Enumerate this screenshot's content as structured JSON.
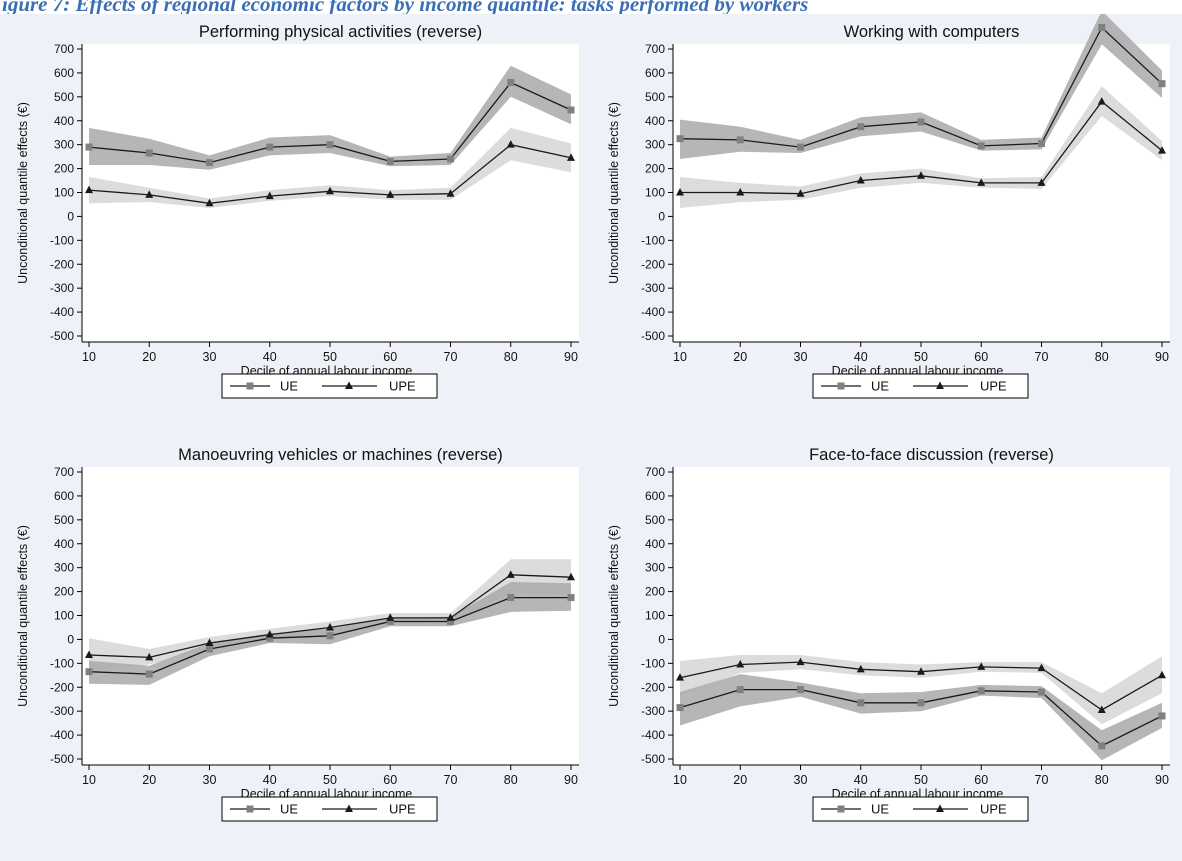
{
  "header": {
    "caption": "igure 7: Effects of regional economic factors by income quantile: tasks performed by workers"
  },
  "theme": {
    "plot_bg": "#ffffff",
    "outer_bg": "#eef2f8",
    "ue_band": "#a9a9a9",
    "upe_band": "#dcdcdc",
    "line_color": "#1a1a1a",
    "marker_color": "#808080"
  },
  "chart_data": [
    {
      "type": "line",
      "title": "Performing physical activities (reverse)",
      "xlabel": "Decile of annual labour income",
      "ylabel": "Unconditional quantile effects (€)",
      "x": [
        10,
        20,
        30,
        40,
        50,
        60,
        70,
        80,
        90
      ],
      "xticks": [
        "10",
        "20",
        "30",
        "40",
        "50",
        "60",
        "70",
        "80",
        "90"
      ],
      "ylim": [
        -500,
        700
      ],
      "yticks": [
        "700",
        "600",
        "500",
        "400",
        "300",
        "200",
        "100",
        "0",
        "-100",
        "-200",
        "-300",
        "-400",
        "-500"
      ],
      "legend": [
        "UE",
        "UPE"
      ],
      "legend_position": "bottom",
      "series": [
        {
          "name": "UE",
          "marker": "square",
          "values": [
            290,
            265,
            225,
            290,
            300,
            230,
            240,
            560,
            445
          ],
          "lower": [
            215,
            215,
            195,
            255,
            265,
            210,
            215,
            500,
            385
          ],
          "upper": [
            370,
            325,
            255,
            330,
            340,
            250,
            265,
            630,
            510
          ]
        },
        {
          "name": "UPE",
          "marker": "triangle",
          "values": [
            110,
            90,
            55,
            85,
            105,
            90,
            95,
            300,
            245
          ],
          "lower": [
            55,
            60,
            35,
            65,
            85,
            70,
            70,
            235,
            185
          ],
          "upper": [
            165,
            120,
            75,
            110,
            130,
            110,
            120,
            370,
            305
          ]
        }
      ]
    },
    {
      "type": "line",
      "title": "Working with computers",
      "xlabel": "Decile of annual labour income",
      "ylabel": "Unconditional quantile effects (€)",
      "x": [
        10,
        20,
        30,
        40,
        50,
        60,
        70,
        80,
        90
      ],
      "xticks": [
        "10",
        "20",
        "30",
        "40",
        "50",
        "60",
        "70",
        "80",
        "90"
      ],
      "ylim": [
        -500,
        700
      ],
      "yticks": [
        "700",
        "600",
        "500",
        "400",
        "300",
        "200",
        "100",
        "0",
        "-100",
        "-200",
        "-300",
        "-400",
        "-500"
      ],
      "ytop": 850,
      "legend": [
        "UE",
        "UPE"
      ],
      "legend_position": "bottom",
      "series": [
        {
          "name": "UE",
          "marker": "square",
          "values": [
            325,
            320,
            290,
            375,
            395,
            295,
            305,
            790,
            555
          ],
          "lower": [
            240,
            270,
            265,
            335,
            355,
            275,
            280,
            720,
            495
          ],
          "upper": [
            405,
            375,
            320,
            415,
            435,
            320,
            330,
            860,
            610
          ]
        },
        {
          "name": "UPE",
          "marker": "triangle",
          "values": [
            100,
            100,
            95,
            150,
            170,
            140,
            140,
            480,
            275
          ],
          "lower": [
            35,
            60,
            70,
            120,
            140,
            120,
            115,
            420,
            235
          ],
          "upper": [
            165,
            140,
            125,
            180,
            200,
            160,
            165,
            545,
            315
          ]
        }
      ]
    },
    {
      "type": "line",
      "title": "Manoeuvring vehicles or machines (reverse)",
      "xlabel": "Decile of annual labour income",
      "ylabel": "Unconditional quantile effects (€)",
      "x": [
        10,
        20,
        30,
        40,
        50,
        60,
        70,
        80,
        90
      ],
      "xticks": [
        "10",
        "20",
        "30",
        "40",
        "50",
        "60",
        "70",
        "80",
        "90"
      ],
      "ylim": [
        -500,
        700
      ],
      "yticks": [
        "700",
        "600",
        "500",
        "400",
        "300",
        "200",
        "100",
        "0",
        "-100",
        "-200",
        "-300",
        "-400",
        "-500"
      ],
      "legend": [
        "UE",
        "UPE"
      ],
      "legend_position": "bottom",
      "series": [
        {
          "name": "UE",
          "marker": "square",
          "values": [
            -135,
            -145,
            -40,
            5,
            15,
            75,
            75,
            175,
            175
          ],
          "lower": [
            -185,
            -190,
            -70,
            -15,
            -20,
            55,
            55,
            115,
            120
          ],
          "upper": [
            -90,
            -110,
            -15,
            25,
            45,
            90,
            95,
            240,
            235
          ]
        },
        {
          "name": "UPE",
          "marker": "triangle",
          "values": [
            -65,
            -75,
            -15,
            20,
            50,
            90,
            90,
            270,
            260
          ],
          "lower": [
            -135,
            -105,
            -40,
            0,
            25,
            65,
            65,
            195,
            190
          ],
          "upper": [
            5,
            -40,
            10,
            45,
            75,
            110,
            110,
            335,
            335
          ]
        }
      ]
    },
    {
      "type": "line",
      "title": "Face-to-face discussion (reverse)",
      "xlabel": "Decile of annual labour income",
      "ylabel": "Unconditional quantile effects (€)",
      "x": [
        10,
        20,
        30,
        40,
        50,
        60,
        70,
        80,
        90
      ],
      "xticks": [
        "10",
        "20",
        "30",
        "40",
        "50",
        "60",
        "70",
        "80",
        "90"
      ],
      "ylim": [
        -500,
        700
      ],
      "yticks": [
        "700",
        "600",
        "500",
        "400",
        "300",
        "200",
        "100",
        "0",
        "-100",
        "-200",
        "-300",
        "-400",
        "-500"
      ],
      "legend": [
        "UE",
        "UPE"
      ],
      "legend_position": "bottom",
      "series": [
        {
          "name": "UE",
          "marker": "square",
          "values": [
            -285,
            -210,
            -210,
            -265,
            -265,
            -215,
            -220,
            -445,
            -320
          ],
          "lower": [
            -360,
            -280,
            -240,
            -310,
            -300,
            -235,
            -245,
            -505,
            -370
          ],
          "upper": [
            -220,
            -145,
            -180,
            -225,
            -220,
            -190,
            -195,
            -380,
            -265
          ]
        },
        {
          "name": "UPE",
          "marker": "triangle",
          "values": [
            -160,
            -105,
            -95,
            -125,
            -135,
            -115,
            -120,
            -295,
            -150
          ],
          "lower": [
            -235,
            -140,
            -125,
            -150,
            -160,
            -135,
            -140,
            -355,
            -225
          ],
          "upper": [
            -90,
            -65,
            -65,
            -95,
            -105,
            -95,
            -95,
            -225,
            -70
          ]
        }
      ]
    }
  ]
}
